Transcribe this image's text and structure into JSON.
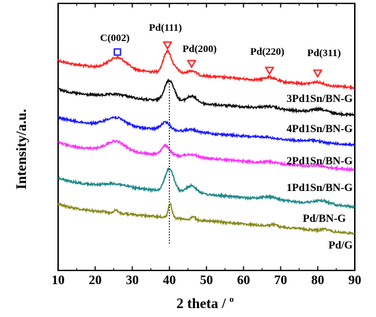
{
  "chart_data": {
    "type": "line",
    "xlabel": "2 theta / ",
    "xlabel_unit": "o",
    "ylabel": "Intensity/a.u.",
    "xlim": [
      10,
      90
    ],
    "xticks": [
      "10",
      "20",
      "30",
      "40",
      "50",
      "60",
      "70",
      "80",
      "90"
    ],
    "grid": false,
    "reference_line_x": 40,
    "peak_labels": [
      {
        "text": "C(002)",
        "x": 26,
        "marker": "square"
      },
      {
        "text": "Pd(111)",
        "x": 39.5,
        "marker": "triangle-down"
      },
      {
        "text": "Pd(200)",
        "x": 46,
        "marker": "triangle-down"
      },
      {
        "text": "Pd(220)",
        "x": 67,
        "marker": "triangle-down"
      },
      {
        "text": "Pd(311)",
        "x": 80,
        "marker": "triangle-down"
      }
    ],
    "series": [
      {
        "name": "",
        "color": "#ff2020",
        "offset": 5,
        "peaks": [
          [
            26,
            1.5,
            2.4
          ],
          [
            39.5,
            2.9,
            1.1
          ],
          [
            42,
            0.5,
            0.9
          ],
          [
            46,
            0.55,
            1.2
          ],
          [
            67,
            0.5,
            1.5
          ],
          [
            80,
            0.35,
            1.5
          ]
        ]
      },
      {
        "name": "3Pd1Sn/BN-G",
        "color": "#111111",
        "offset": 4,
        "peaks": [
          [
            26,
            0.4,
            3
          ],
          [
            40,
            2.8,
            1.3
          ],
          [
            46,
            0.9,
            1.4
          ],
          [
            67,
            0.3,
            2
          ],
          [
            80.5,
            0.4,
            2
          ]
        ]
      },
      {
        "name": "4Pd1Sn/BN-G",
        "color": "#1a1aff",
        "offset": 3,
        "peaks": [
          [
            25.5,
            1.1,
            2.6
          ],
          [
            39,
            1.0,
            1.2
          ],
          [
            46,
            0.3,
            1.5
          ],
          [
            66,
            0.15,
            1.5
          ],
          [
            79,
            0.2,
            1.5
          ]
        ]
      },
      {
        "name": "2Pd1Sn/BN-G",
        "color": "#ff30ff",
        "offset": 2,
        "peaks": [
          [
            25.5,
            1.3,
            2.5
          ],
          [
            39,
            1.2,
            1.1
          ],
          [
            46,
            0.35,
            1.5
          ],
          [
            67,
            0.2,
            1.5
          ],
          [
            80,
            0.2,
            1.5
          ]
        ]
      },
      {
        "name": "1Pd1Sn/BN-G",
        "color": "#1e8a8a",
        "offset": 1,
        "peaks": [
          [
            25.5,
            0.4,
            3
          ],
          [
            40,
            3.0,
            1.2
          ],
          [
            46,
            1.0,
            1.4
          ],
          [
            67,
            0.4,
            2
          ],
          [
            81,
            0.45,
            2
          ]
        ]
      },
      {
        "name": "Pd/BN-G",
        "color": "#8a8a1e",
        "offset": 0,
        "peaks": [
          [
            25.5,
            0.35,
            0.6
          ],
          [
            40.2,
            1.8,
            0.5
          ],
          [
            46.5,
            0.4,
            0.5
          ],
          [
            68,
            0.3,
            0.8
          ],
          [
            82,
            0.3,
            0.8
          ]
        ]
      }
    ]
  },
  "series_side_labels": [
    "3Pd1Sn/BN-G",
    "4Pd1Sn/BN-G",
    "2Pd1Sn/BN-G",
    "1Pd1Sn/BN-G",
    "Pd/BN-G",
    "Pd/G"
  ]
}
